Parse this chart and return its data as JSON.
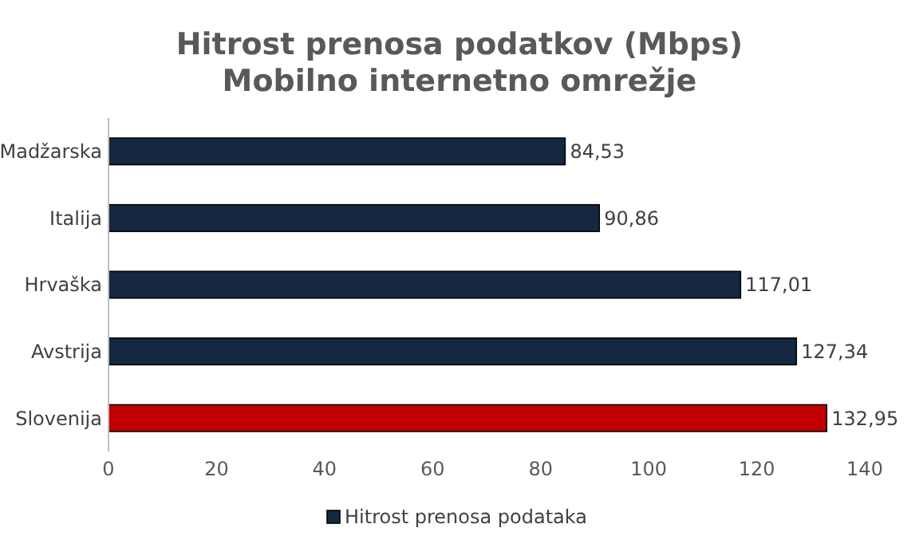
{
  "chart_data": {
    "type": "bar",
    "orientation": "horizontal",
    "title": "Hitrost prenosa podatkov (Mbps)",
    "subtitle": "Mobilno internetno omrežje",
    "categories": [
      "Madžarska",
      "Italija",
      "Hrvaška",
      "Avstrija",
      "Slovenija"
    ],
    "series": [
      {
        "name": "Hitrost prenosa podataka",
        "color": "#142841",
        "colors": [
          "#142841",
          "#142841",
          "#142841",
          "#142841",
          "#c00000"
        ],
        "values": [
          84.53,
          90.86,
          117.01,
          127.34,
          132.95
        ],
        "value_labels": [
          "84,53",
          "90,86",
          "117,01",
          "127,34",
          "132,95"
        ]
      }
    ],
    "xlim": [
      0,
      140
    ],
    "xticks": [
      0,
      20,
      40,
      60,
      80,
      100,
      120,
      140
    ],
    "grid": false,
    "legend": "bottom"
  }
}
